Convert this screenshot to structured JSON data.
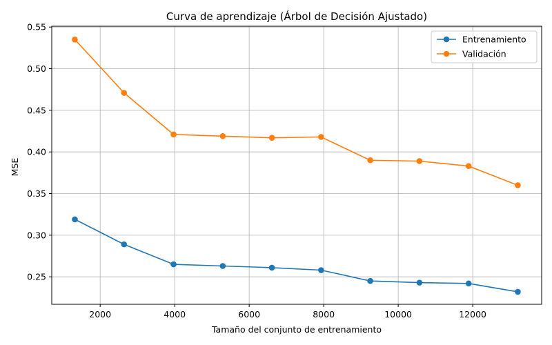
{
  "chart_data": {
    "type": "line",
    "title": "Curva de aprendizaje (Árbol de Decisión Ajustado)",
    "xlabel": "Tamaño del conjunto de entrenamiento",
    "ylabel": "MSE",
    "xlim": [
      700,
      13850
    ],
    "ylim": [
      0.217,
      0.551
    ],
    "xticks": [
      2000,
      4000,
      6000,
      8000,
      10000,
      12000
    ],
    "yticks": [
      0.25,
      0.3,
      0.35,
      0.4,
      0.45,
      0.5,
      0.55
    ],
    "grid": true,
    "legend_position": "top-right",
    "x": [
      1320,
      2640,
      3970,
      5290,
      6610,
      7930,
      9250,
      10570,
      11890,
      13210
    ],
    "series": [
      {
        "name": "Entrenamiento",
        "color": "#1f77b4",
        "values": [
          0.319,
          0.289,
          0.265,
          0.263,
          0.261,
          0.258,
          0.245,
          0.243,
          0.242,
          0.232
        ]
      },
      {
        "name": "Validación",
        "color": "#ff7f0e",
        "values": [
          0.535,
          0.471,
          0.421,
          0.419,
          0.417,
          0.418,
          0.39,
          0.389,
          0.383,
          0.36
        ]
      }
    ]
  }
}
